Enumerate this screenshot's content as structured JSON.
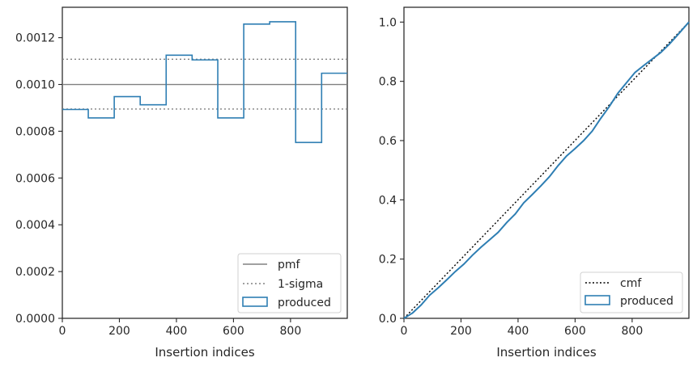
{
  "colors": {
    "produced": "#2e7eb3",
    "pmf": "#808080",
    "sigma": "#808080",
    "cmf": "#000000",
    "axis": "#262626"
  },
  "chart_data": [
    {
      "type": "line",
      "subtype": "step-histogram",
      "xlabel": "Insertion indices",
      "ylabel": "",
      "xlim": [
        0,
        999
      ],
      "ylim": [
        0,
        0.00133
      ],
      "xticks": [
        0,
        200,
        400,
        600,
        800
      ],
      "xtick_labels": [
        "0",
        "200",
        "400",
        "600",
        "800"
      ],
      "yticks": [
        0,
        0.0002,
        0.0004,
        0.0006,
        0.0008,
        0.001,
        0.0012
      ],
      "ytick_labels": [
        "0.0000",
        "0.0002",
        "0.0004",
        "0.0006",
        "0.0008",
        "0.0010",
        "0.0012"
      ],
      "grid": false,
      "legend_position": "bottom-right",
      "legend": [
        "pmf",
        "1-sigma",
        "produced"
      ],
      "bin_edges": [
        0,
        91,
        182,
        273,
        364,
        455,
        545,
        636,
        727,
        818,
        909,
        999
      ],
      "produced_values": [
        0.000893,
        0.000857,
        0.000948,
        0.000913,
        0.001125,
        0.001105,
        0.000857,
        0.001258,
        0.001268,
        0.000752,
        0.001048
      ],
      "pmf": 0.001,
      "sigma_band": [
        0.000895,
        0.001108
      ]
    },
    {
      "type": "line",
      "xlabel": "Insertion indices",
      "ylabel": "",
      "xlim": [
        0,
        999
      ],
      "ylim": [
        0,
        1.05
      ],
      "xticks": [
        0,
        200,
        400,
        600,
        800
      ],
      "xtick_labels": [
        "0",
        "200",
        "400",
        "600",
        "800"
      ],
      "yticks": [
        0,
        0.2,
        0.4,
        0.6,
        0.8,
        1.0
      ],
      "ytick_labels": [
        "0.0",
        "0.2",
        "0.4",
        "0.6",
        "0.8",
        "1.0"
      ],
      "grid": false,
      "legend_position": "bottom-right",
      "legend": [
        "cmf",
        "produced"
      ],
      "cmf_x": [
        0,
        999
      ],
      "cmf_y": [
        0,
        1.0
      ],
      "produced_x": [
        0,
        30,
        60,
        90,
        120,
        150,
        180,
        210,
        240,
        270,
        300,
        330,
        360,
        390,
        420,
        450,
        480,
        510,
        540,
        570,
        600,
        630,
        660,
        690,
        720,
        750,
        780,
        810,
        840,
        870,
        900,
        930,
        960,
        999
      ],
      "produced_y": [
        0,
        0.018,
        0.045,
        0.078,
        0.103,
        0.13,
        0.158,
        0.183,
        0.213,
        0.24,
        0.265,
        0.29,
        0.323,
        0.352,
        0.39,
        0.418,
        0.447,
        0.478,
        0.515,
        0.548,
        0.573,
        0.6,
        0.632,
        0.675,
        0.715,
        0.76,
        0.795,
        0.83,
        0.853,
        0.875,
        0.897,
        0.925,
        0.957,
        1.0
      ]
    }
  ]
}
